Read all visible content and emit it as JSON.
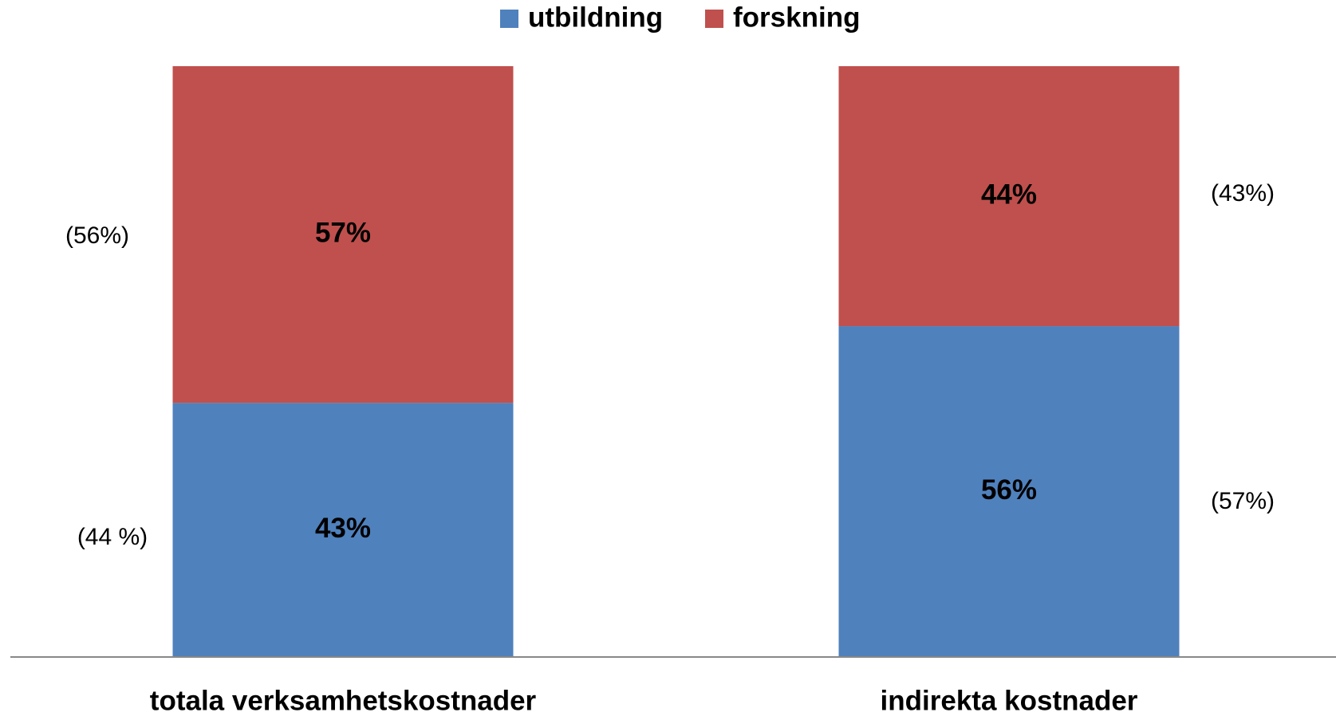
{
  "chart_data": {
    "type": "stacked-bar",
    "categories": [
      "totala verksamhetskostnader",
      "indirekta kostnader"
    ],
    "series": [
      {
        "name": "utbildning",
        "color": "#4f81bd",
        "values": [
          43,
          56
        ],
        "value_labels": [
          "43%",
          "56%"
        ]
      },
      {
        "name": "forskning",
        "color": "#c0504d",
        "values": [
          57,
          44
        ],
        "value_labels": [
          "57%",
          "44%"
        ]
      }
    ],
    "annotations": [
      "(56%)",
      "(44 %)",
      "(43%)",
      "(57%)"
    ],
    "legend": "top"
  }
}
